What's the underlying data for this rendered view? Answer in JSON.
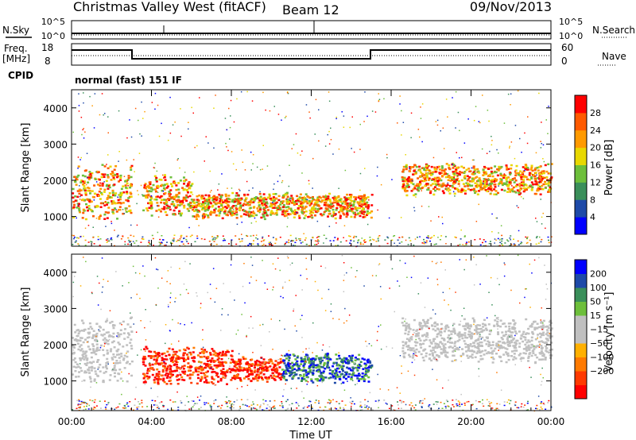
{
  "header": {
    "station": "Christmas Valley West (fitACF)",
    "beam": "Beam 12",
    "date": "09/Nov/2013"
  },
  "nsky_panel": {
    "label": "N.Sky",
    "left_ticks": [
      "10^5",
      "10^0"
    ],
    "right_ticks": [
      "10^5",
      "10^0"
    ],
    "right_label": "N.Search"
  },
  "freq_panel": {
    "label_line1": "Freq.",
    "label_line2": "[MHz]",
    "left_ticks": [
      "18",
      "8"
    ],
    "right_ticks": [
      "60",
      "0"
    ],
    "right_label": "Nave"
  },
  "cpid_panel": {
    "label": "CPID",
    "mode": "normal (fast) 151 IF"
  },
  "colors": {
    "power_scale": [
      "#0000ff",
      "#1e4aa8",
      "#3a8f5a",
      "#6dbf3b",
      "#e8d800",
      "#ff9a00",
      "#ff5a00",
      "#ff0000"
    ],
    "velocity_scale": [
      "#ff0000",
      "#ff3a00",
      "#ff7a00",
      "#ffb000",
      "#c0c0c0",
      "#c0c0c0",
      "#6dbf3b",
      "#3a8f5a",
      "#1e4aa8",
      "#0000ff"
    ]
  },
  "chart_data": [
    {
      "type": "heatmap",
      "quantity": "Power",
      "xlabel": "",
      "ylabel": "Slant Range [km]",
      "xlim": [
        "00:00",
        "24:00"
      ],
      "ylim": [
        180,
        4500
      ],
      "x_ticks": [
        "00:00",
        "04:00",
        "08:00",
        "12:00",
        "16:00",
        "20:00",
        "00:00"
      ],
      "y_ticks": [
        1000,
        2000,
        3000,
        4000
      ],
      "colorbar": {
        "label": "Power [dB]",
        "ticks": [
          "4",
          "8",
          "12",
          "16",
          "20",
          "24",
          "28"
        ],
        "range": [
          0,
          30
        ]
      },
      "regions": [
        {
          "t_start": 0.0,
          "t_end": 3.0,
          "r_min": 900,
          "r_max": 2500,
          "level": "high"
        },
        {
          "t_start": 3.5,
          "t_end": 6.0,
          "r_min": 1000,
          "r_max": 2200,
          "level": "high"
        },
        {
          "t_start": 6.0,
          "t_end": 15.0,
          "r_min": 950,
          "r_max": 1700,
          "level": "high"
        },
        {
          "t_start": 16.5,
          "t_end": 24.0,
          "r_min": 1600,
          "r_max": 2500,
          "level": "high"
        }
      ]
    },
    {
      "type": "heatmap",
      "quantity": "Velocity",
      "xlabel": "Time UT",
      "ylabel": "Slant Range [km]",
      "xlim": [
        "00:00",
        "24:00"
      ],
      "ylim": [
        180,
        4500
      ],
      "x_ticks": [
        "00:00",
        "04:00",
        "08:00",
        "12:00",
        "16:00",
        "20:00",
        "00:00"
      ],
      "y_ticks": [
        1000,
        2000,
        3000,
        4000
      ],
      "colorbar": {
        "label": "Velocity [m s⁻¹]",
        "ticks": [
          "200",
          "100",
          "50",
          "15",
          "−15",
          "−50",
          "−100",
          "−200"
        ],
        "range": [
          -250,
          250
        ]
      },
      "regions": [
        {
          "t_start": 0.0,
          "t_end": 3.0,
          "r_min": 900,
          "r_max": 2800,
          "level": "ground"
        },
        {
          "t_start": 3.5,
          "t_end": 8.0,
          "r_min": 900,
          "r_max": 2000,
          "level": "negative"
        },
        {
          "t_start": 8.0,
          "t_end": 10.5,
          "r_min": 950,
          "r_max": 1700,
          "level": "negative"
        },
        {
          "t_start": 10.5,
          "t_end": 15.0,
          "r_min": 950,
          "r_max": 1800,
          "level": "positive"
        },
        {
          "t_start": 16.5,
          "t_end": 24.0,
          "r_min": 1500,
          "r_max": 2800,
          "level": "ground"
        }
      ]
    }
  ]
}
